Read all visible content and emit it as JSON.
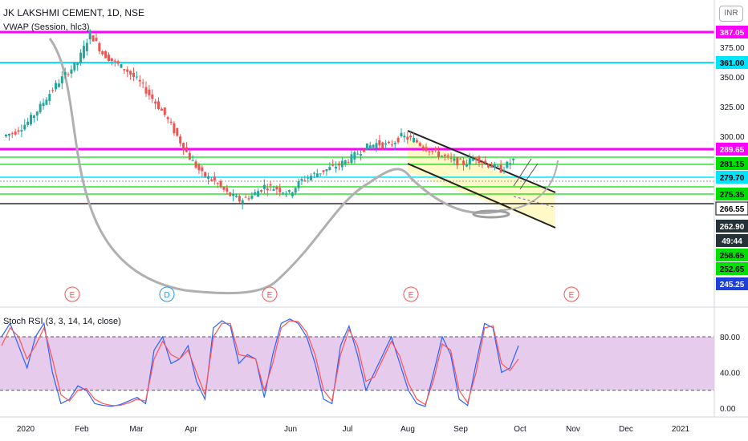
{
  "chart_header": {
    "symbol_line": "JK LAKSHMI CEMENT, 1D, NSE",
    "indicator_line": "VWAP (Session, hlc3)",
    "currency_badge": "INR"
  },
  "colors": {
    "magenta": "#ff00ff",
    "cyan": "#00e5ff",
    "green": "#00e000",
    "black": "#000000",
    "candle_up": "#26a69a",
    "candle_down": "#ef5350",
    "channel_fill": "#fff9c4",
    "curve_gray": "#b0b0b0",
    "stoch_k": "#2962ff",
    "stoch_d": "#ff5252",
    "stoch_band": "#e1bee7"
  },
  "price_axis": {
    "ticks": [
      "375.00",
      "350.00",
      "325.00",
      "300.00"
    ],
    "badges": [
      {
        "label": "387.05",
        "kind": "magenta"
      },
      {
        "label": "361.00",
        "kind": "cyan"
      },
      {
        "label": "289.65",
        "kind": "magenta"
      },
      {
        "label": "281.15",
        "kind": "green"
      },
      {
        "label": "279.70",
        "kind": "cyan"
      },
      {
        "label": "275.35",
        "kind": "green"
      },
      {
        "label": "266.55",
        "kind": "black_outline"
      },
      {
        "label": "262.90",
        "kind": "dark"
      },
      {
        "label": "49:44",
        "kind": "dark"
      },
      {
        "label": "258.65",
        "kind": "green"
      },
      {
        "label": "252.65",
        "kind": "green"
      },
      {
        "label": "245.25",
        "kind": "blue"
      }
    ]
  },
  "time_axis": {
    "labels": [
      "2020",
      "Feb",
      "Mar",
      "Apr",
      "Jun",
      "Jul",
      "Aug",
      "Sep",
      "Oct",
      "Nov",
      "Dec",
      "2021"
    ]
  },
  "event_markers": [
    "E",
    "D",
    "E",
    "E",
    "E"
  ],
  "stoch": {
    "title": "Stoch RSI (3, 3, 14, 14, close)",
    "axis_ticks": [
      "80.00",
      "40.00",
      "0.00"
    ]
  },
  "chart_data": [
    {
      "type": "candlestick",
      "title": "JK LAKSHMI CEMENT, 1D, NSE",
      "ylim": [
        240,
        395
      ],
      "x_labels": [
        "2020",
        "Feb",
        "Mar",
        "Apr",
        "Jun",
        "Jul",
        "Aug",
        "Sep",
        "Oct",
        "Nov",
        "Dec",
        "2021"
      ],
      "close_path": [
        [
          "2020",
          300
        ],
        [
          "2020",
          304
        ],
        [
          "2020",
          312
        ],
        [
          "2020",
          325
        ],
        [
          "2020",
          340
        ],
        [
          "2020",
          352
        ],
        [
          "Feb",
          362
        ],
        [
          "Feb",
          387
        ],
        [
          "Feb",
          370
        ],
        [
          "Feb",
          362
        ],
        [
          "Feb",
          355
        ],
        [
          "Feb",
          345
        ],
        [
          "Mar",
          332
        ],
        [
          "Mar",
          318
        ],
        [
          "Mar",
          300
        ],
        [
          "Mar",
          282
        ],
        [
          "Mar",
          268
        ],
        [
          "Mar",
          262
        ],
        [
          "Apr",
          252
        ],
        [
          "Apr",
          246
        ],
        [
          "Apr",
          250
        ],
        [
          "Apr",
          258
        ],
        [
          "Apr",
          256
        ],
        [
          "Apr",
          252
        ],
        [
          "Jun",
          263
        ],
        [
          "Jun",
          268
        ],
        [
          "Jun",
          272
        ],
        [
          "Jun",
          276
        ],
        [
          "Jul",
          282
        ],
        [
          "Jul",
          290
        ],
        [
          "Jul",
          294
        ],
        [
          "Jul",
          292
        ],
        [
          "Aug",
          300
        ],
        [
          "Aug",
          297
        ],
        [
          "Aug",
          290
        ],
        [
          "Aug",
          285
        ],
        [
          "Sep",
          280
        ],
        [
          "Sep",
          277
        ],
        [
          "Sep",
          282
        ],
        [
          "Sep",
          276
        ],
        [
          "Oct",
          272
        ],
        [
          "Oct",
          280
        ]
      ],
      "horizontal_levels": [
        387.05,
        361.0,
        289.65,
        281.15,
        279.7,
        275.35,
        266.55,
        258.65,
        252.65,
        245.25
      ],
      "last_price": 262.9
    },
    {
      "type": "line",
      "title": "Stoch RSI (3, 3, 14, 14, close)",
      "ylim": [
        0,
        100
      ],
      "bands": [
        20,
        80
      ],
      "series": [
        {
          "values": [
            80,
            95,
            70,
            45,
            80,
            95,
            40,
            5,
            10,
            25,
            20,
            5,
            3,
            2,
            4,
            8,
            12,
            5,
            65,
            80,
            50,
            55,
            70,
            30,
            10,
            90,
            98,
            92,
            50,
            60,
            55,
            12,
            60,
            95,
            100,
            95,
            80,
            50,
            10,
            5,
            70,
            92,
            60,
            20,
            40,
            60,
            80,
            50,
            20,
            5,
            2,
            40,
            80,
            60,
            10,
            3,
            50,
            95,
            90,
            40,
            45,
            70
          ]
        },
        {
          "values": [
            70,
            90,
            80,
            55,
            70,
            90,
            55,
            15,
            8,
            20,
            22,
            10,
            5,
            3,
            3,
            6,
            10,
            8,
            55,
            75,
            60,
            55,
            65,
            40,
            15,
            80,
            95,
            95,
            60,
            58,
            55,
            20,
            50,
            90,
            98,
            97,
            85,
            60,
            20,
            8,
            60,
            88,
            70,
            30,
            35,
            55,
            75,
            58,
            28,
            10,
            4,
            32,
            72,
            65,
            20,
            6,
            40,
            90,
            92,
            50,
            42,
            55
          ]
        }
      ]
    }
  ]
}
